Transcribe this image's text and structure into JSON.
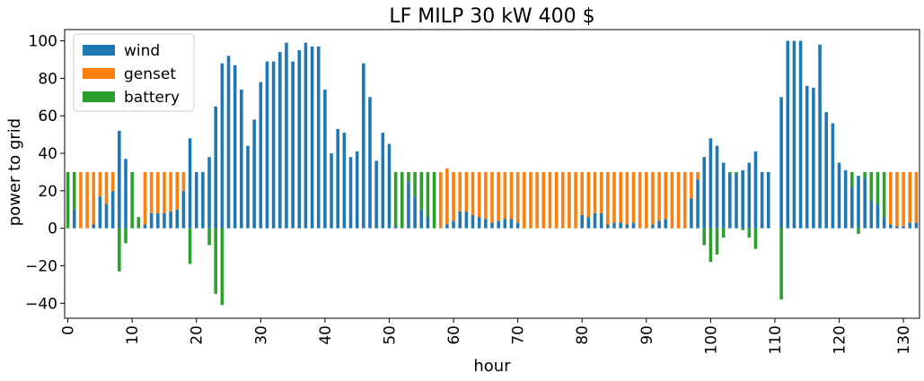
{
  "chart_data": {
    "type": "bar",
    "stacked": true,
    "title": "LF MILP 30 kW 400 $",
    "xlabel": "hour",
    "ylabel": "power to grid",
    "ylim": [
      -48,
      106
    ],
    "yticks": [
      -40,
      -20,
      0,
      20,
      40,
      60,
      80,
      100
    ],
    "xticks": [
      0,
      10,
      20,
      30,
      40,
      50,
      60,
      70,
      80,
      90,
      100,
      110,
      120,
      130
    ],
    "x": [
      0,
      1,
      2,
      3,
      4,
      5,
      6,
      7,
      8,
      9,
      10,
      11,
      12,
      13,
      14,
      15,
      16,
      17,
      18,
      19,
      20,
      21,
      22,
      23,
      24,
      25,
      26,
      27,
      28,
      29,
      30,
      31,
      32,
      33,
      34,
      35,
      36,
      37,
      38,
      39,
      40,
      41,
      42,
      43,
      44,
      45,
      46,
      47,
      48,
      49,
      50,
      51,
      52,
      53,
      54,
      55,
      56,
      57,
      58,
      59,
      60,
      61,
      62,
      63,
      64,
      65,
      66,
      67,
      68,
      69,
      70,
      71,
      72,
      73,
      74,
      75,
      76,
      77,
      78,
      79,
      80,
      81,
      82,
      83,
      84,
      85,
      86,
      87,
      88,
      89,
      90,
      91,
      92,
      93,
      94,
      95,
      96,
      97,
      98,
      99,
      100,
      101,
      102,
      103,
      104,
      105,
      106,
      107,
      108,
      109,
      110,
      111,
      112,
      113,
      114,
      115,
      116,
      117,
      118,
      119,
      120,
      121,
      122,
      123,
      124,
      125,
      126,
      127,
      128,
      129,
      130,
      131,
      132
    ],
    "legend_position": "upper-left",
    "colors": {
      "wind": "#1f77b4",
      "genset": "#ff7f0e",
      "battery": "#2ca02c"
    },
    "series": [
      {
        "name": "wind",
        "values": [
          0,
          10,
          0,
          0,
          2,
          17,
          13,
          20,
          52,
          37,
          0,
          0,
          2,
          8,
          8,
          8,
          9,
          10,
          20,
          48,
          30,
          30,
          38,
          65,
          88,
          92,
          87,
          74,
          44,
          58,
          78,
          89,
          89,
          94,
          99,
          89,
          95,
          99,
          97,
          97,
          74,
          40,
          53,
          51,
          38,
          41,
          88,
          70,
          36,
          51,
          45,
          1,
          0,
          25,
          17,
          10,
          6,
          0,
          0,
          2,
          4,
          9,
          9,
          7,
          6,
          5,
          3,
          4,
          5,
          5,
          3,
          0,
          0,
          0,
          0,
          0,
          0,
          0,
          0,
          0,
          7,
          6,
          8,
          8,
          2,
          3,
          3,
          2,
          3,
          0,
          0,
          2,
          4,
          5,
          0,
          0,
          0,
          16,
          26,
          38,
          48,
          44,
          35,
          29,
          29,
          31,
          35,
          41,
          30,
          30,
          0,
          70,
          100,
          100,
          100,
          76,
          75,
          98,
          62,
          56,
          35,
          31,
          22,
          28,
          27,
          15,
          13,
          6,
          2,
          1,
          1,
          3,
          3
        ]
      },
      {
        "name": "genset",
        "values": [
          0,
          0,
          30,
          30,
          28,
          13,
          17,
          10,
          0,
          0,
          0,
          0,
          28,
          22,
          22,
          22,
          21,
          20,
          10,
          0,
          0,
          0,
          0,
          0,
          0,
          0,
          0,
          0,
          0,
          0,
          0,
          0,
          0,
          0,
          0,
          0,
          0,
          0,
          0,
          0,
          0,
          0,
          0,
          0,
          0,
          0,
          0,
          0,
          0,
          0,
          0,
          0,
          0,
          0,
          0,
          0,
          0,
          0,
          30,
          30,
          26,
          21,
          21,
          23,
          24,
          25,
          27,
          26,
          25,
          25,
          27,
          30,
          30,
          30,
          30,
          30,
          30,
          30,
          30,
          30,
          23,
          24,
          22,
          22,
          28,
          27,
          27,
          28,
          27,
          30,
          30,
          28,
          26,
          25,
          30,
          30,
          30,
          14,
          4,
          0,
          0,
          0,
          0,
          0,
          0,
          0,
          0,
          0,
          0,
          0,
          0,
          0,
          0,
          0,
          0,
          0,
          0,
          0,
          0,
          0,
          0,
          0,
          0,
          0,
          0,
          0,
          0,
          0,
          28,
          29,
          29,
          27,
          27
        ]
      },
      {
        "name": "battery",
        "values": [
          30,
          20,
          0,
          0,
          0,
          0,
          0,
          0,
          -23,
          -8,
          30,
          6,
          0,
          0,
          0,
          0,
          0,
          0,
          0,
          -19,
          0,
          0,
          -9,
          -35,
          -41,
          0,
          0,
          0,
          0,
          0,
          0,
          0,
          0,
          0,
          0,
          0,
          0,
          0,
          0,
          0,
          0,
          0,
          0,
          0,
          0,
          0,
          0,
          0,
          0,
          0,
          0,
          29,
          30,
          5,
          13,
          20,
          24,
          30,
          0,
          0,
          0,
          0,
          0,
          0,
          0,
          0,
          0,
          0,
          0,
          0,
          0,
          0,
          0,
          0,
          0,
          0,
          0,
          0,
          0,
          0,
          0,
          0,
          0,
          0,
          0,
          0,
          0,
          0,
          0,
          0,
          0,
          0,
          0,
          0,
          0,
          0,
          0,
          0,
          0,
          -9,
          -18,
          -14,
          -5,
          1,
          1,
          -1,
          -5,
          -11,
          0,
          0,
          0,
          -38,
          0,
          0,
          0,
          0,
          0,
          0,
          0,
          0,
          0,
          0,
          8,
          -3,
          3,
          15,
          17,
          24,
          0,
          0,
          0,
          0,
          0
        ]
      }
    ]
  }
}
